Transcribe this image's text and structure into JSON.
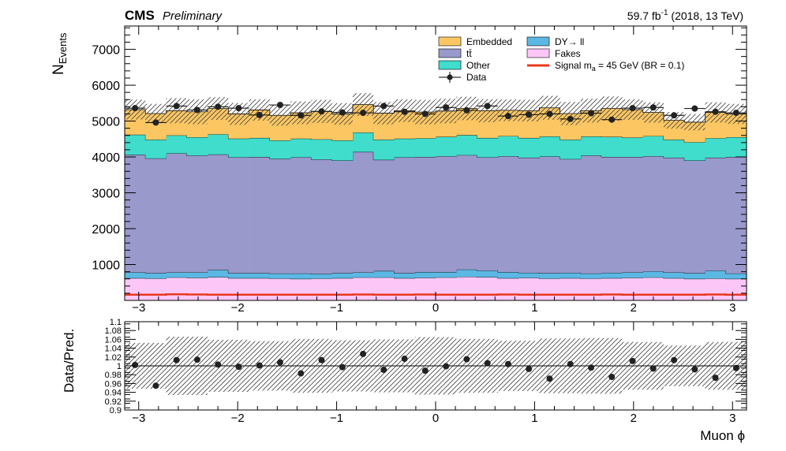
{
  "header": {
    "cms": "CMS",
    "preliminary": "Preliminary",
    "lumi_main": "59.7 fb",
    "lumi_sup": "-1",
    "lumi_tail": " (2018, 13 TeV)"
  },
  "legend": {
    "embedded": "Embedded",
    "ttbar": "tt̄",
    "other": "Other",
    "data": "Data",
    "dy": "DY→ ll",
    "fakes": "Fakes",
    "signal_pre": "Signal m",
    "signal_sub": "a",
    "signal_post": " = 45 GeV (BR = 0.1)"
  },
  "colors": {
    "embedded": "#fcc762",
    "dy": "#5bb8e3",
    "ttbar": "#9999cc",
    "other": "#40ddcc",
    "fakes": "#fcc7f7",
    "signal": "#e8381f",
    "data": "#222222"
  },
  "chart_data": [
    {
      "type": "bar",
      "stacked": true,
      "ylabel_main": "N",
      "ylabel_sub": "Events",
      "xlim": [
        -3.14159,
        3.14159
      ],
      "ylim": [
        0,
        7650
      ],
      "xticks": [
        -3,
        -2,
        -1,
        0,
        1,
        2,
        3
      ],
      "xtick_labels": [
        "−3",
        "−2",
        "−1",
        "0",
        "1",
        "2",
        "3"
      ],
      "yticks": [
        1000,
        2000,
        3000,
        4000,
        5000,
        6000,
        7000
      ],
      "ytick_labels": [
        "1000",
        "2000",
        "3000",
        "4000",
        "5000",
        "6000",
        "7000"
      ],
      "nbins": 30,
      "stack_order": [
        "fakes",
        "dy",
        "ttbar",
        "other",
        "embedded"
      ],
      "series": [
        {
          "key": "fakes",
          "name": "Fakes",
          "values": [
            620,
            610,
            640,
            630,
            650,
            620,
            620,
            610,
            600,
            610,
            620,
            640,
            640,
            620,
            630,
            640,
            660,
            650,
            620,
            630,
            610,
            620,
            610,
            620,
            630,
            640,
            620,
            600,
            610,
            600
          ]
        },
        {
          "key": "dy",
          "name": "DY→ ll",
          "values": [
            160,
            150,
            140,
            150,
            200,
            140,
            140,
            140,
            150,
            130,
            140,
            140,
            180,
            140,
            160,
            150,
            200,
            180,
            170,
            140,
            150,
            150,
            140,
            150,
            150,
            170,
            160,
            160,
            220,
            150
          ]
        },
        {
          "key": "ttbar",
          "name": "tt̄",
          "values": [
            3280,
            3200,
            3320,
            3260,
            3220,
            3230,
            3240,
            3200,
            3240,
            3190,
            3140,
            3360,
            3100,
            3230,
            3210,
            3230,
            3190,
            3160,
            3230,
            3210,
            3250,
            3170,
            3290,
            3230,
            3220,
            3210,
            3200,
            3140,
            3150,
            3250
          ]
        },
        {
          "key": "other",
          "name": "Other",
          "values": [
            560,
            520,
            500,
            510,
            560,
            520,
            530,
            510,
            520,
            560,
            560,
            540,
            560,
            520,
            520,
            540,
            560,
            540,
            560,
            550,
            560,
            540,
            530,
            560,
            540,
            560,
            500,
            510,
            540,
            550
          ]
        },
        {
          "key": "embedded",
          "name": "Embedded",
          "values": [
            700,
            730,
            690,
            710,
            720,
            690,
            780,
            700,
            720,
            780,
            740,
            780,
            740,
            780,
            730,
            720,
            740,
            760,
            720,
            760,
            800,
            730,
            720,
            790,
            780,
            660,
            540,
            560,
            720,
            650
          ]
        }
      ],
      "uncertainty_fraction": [
        0.052,
        0.052,
        0.066,
        0.066,
        0.059,
        0.059,
        0.056,
        0.056,
        0.061,
        0.061,
        0.058,
        0.058,
        0.06,
        0.06,
        0.065,
        0.065,
        0.061,
        0.061,
        0.057,
        0.057,
        0.062,
        0.062,
        0.063,
        0.063,
        0.054,
        0.054,
        0.046,
        0.046,
        0.054,
        0.054
      ],
      "signal": {
        "name": "Signal m_a = 45 GeV (BR = 0.1)",
        "values": [
          160,
          160,
          170,
          165,
          160,
          160,
          160,
          160,
          160,
          160,
          160,
          165,
          160,
          160,
          165,
          160,
          160,
          160,
          165,
          160,
          160,
          160,
          160,
          165,
          160,
          160,
          160,
          160,
          165,
          160
        ]
      },
      "data": {
        "name": "Data",
        "x": [
          -3.037,
          -2.827,
          -2.618,
          -2.409,
          -2.199,
          -1.99,
          -1.78,
          -1.571,
          -1.361,
          -1.152,
          -0.942,
          -0.733,
          -0.524,
          -0.314,
          -0.105,
          0.105,
          0.314,
          0.524,
          0.733,
          0.942,
          1.152,
          1.361,
          1.571,
          1.78,
          1.99,
          2.199,
          2.409,
          2.618,
          2.827,
          3.037
        ],
        "y": [
          5360,
          4960,
          5420,
          5310,
          5400,
          5360,
          5170,
          5450,
          5160,
          5270,
          5240,
          5230,
          5420,
          5260,
          5200,
          5380,
          5300,
          5420,
          5140,
          5180,
          5200,
          5060,
          5220,
          5040,
          5360,
          5380,
          5160,
          5350,
          5260,
          5230
        ]
      }
    },
    {
      "type": "scatter",
      "ylabel": "Data/Pred.",
      "xlabel": "Muon ϕ",
      "xlim": [
        -3.14159,
        3.14159
      ],
      "ylim": [
        0.9,
        1.1
      ],
      "yticks": [
        0.9,
        0.92,
        0.94,
        0.96,
        0.98,
        1.0,
        1.02,
        1.04,
        1.06,
        1.08,
        1.1
      ],
      "ytick_labels": [
        "0.9",
        "0.92",
        "0.94",
        "0.96",
        "0.98",
        "1",
        "1.02",
        "1.04",
        "1.06",
        "1.08",
        "1.1"
      ],
      "xticks": [
        -3,
        -2,
        -1,
        0,
        1,
        2,
        3
      ],
      "xtick_labels": [
        "−3",
        "−2",
        "−1",
        "0",
        "1",
        "2",
        "3"
      ],
      "reference_line": 1.0,
      "ratio": [
        1.002,
        0.955,
        1.013,
        1.014,
        1.003,
        0.998,
        1.001,
        1.008,
        0.983,
        1.013,
        0.997,
        1.027,
        0.991,
        1.016,
        0.989,
        0.999,
        1.015,
        1.006,
        1.004,
        0.993,
        0.971,
        1.004,
        0.996,
        0.975,
        1.011,
        0.994,
        1.013,
        0.992,
        0.973,
        0.995
      ]
    }
  ]
}
